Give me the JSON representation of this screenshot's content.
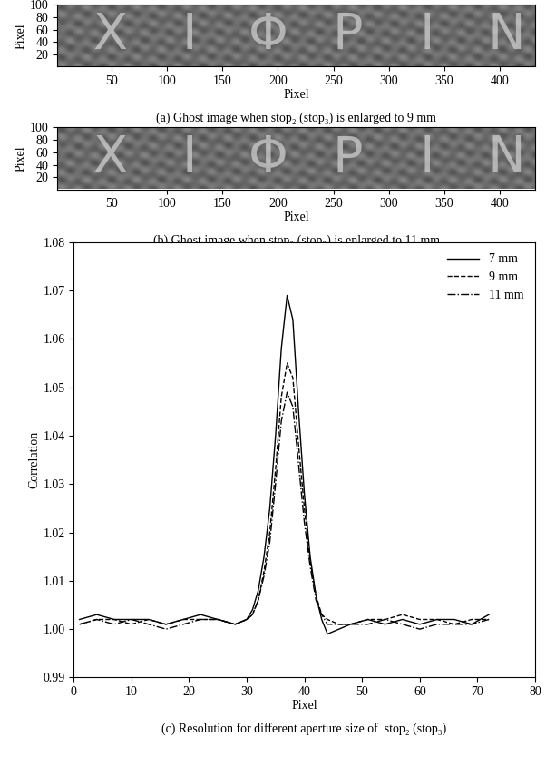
{
  "chart_data": [
    {
      "type": "image",
      "caption": "(a) Ghost image when stop₂ (stop₃) is enlarged to 9 mm",
      "image_text": [
        "X",
        "I",
        "Φ",
        "P",
        "I",
        "N"
      ],
      "x_label": "Pixel",
      "y_label": "Pixel",
      "xlim": [
        1,
        432
      ],
      "ylim": [
        1,
        100
      ],
      "xticks": [
        50,
        100,
        150,
        200,
        250,
        300,
        350,
        400
      ],
      "yticks": [
        20,
        40,
        60,
        80,
        100
      ]
    },
    {
      "type": "image",
      "caption": "(b) Ghost image when stop₂ (stop₃) is enlarged to 11 mm",
      "image_text": [
        "X",
        "I",
        "Φ",
        "P",
        "I",
        "N"
      ],
      "x_label": "Pixel",
      "y_label": "Pixel",
      "xlim": [
        1,
        432
      ],
      "ylim": [
        1,
        100
      ],
      "xticks": [
        50,
        100,
        150,
        200,
        250,
        300,
        350,
        400
      ],
      "yticks": [
        20,
        40,
        60,
        80,
        100
      ]
    },
    {
      "type": "line",
      "caption": "(c) Resolution for different aperture size of  stop₂ (stop₃)",
      "x_label": "Pixel",
      "y_label": "Correlation",
      "legend": "upper right",
      "xlim": [
        0,
        80
      ],
      "ylim": [
        0.99,
        1.08
      ],
      "xticks": [
        0,
        10,
        20,
        30,
        40,
        50,
        60,
        70,
        80
      ],
      "yticks": [
        0.99,
        {
          "value": 1.0,
          "label": "1.00"
        },
        1.01,
        1.02,
        1.03,
        1.04,
        1.05,
        1.06,
        1.07,
        1.08
      ],
      "x": [
        1,
        4,
        7,
        10,
        13,
        16,
        19,
        22,
        25,
        28,
        30,
        31,
        32,
        33,
        34,
        35,
        36,
        37,
        38,
        39,
        40,
        41,
        42,
        43,
        44,
        46,
        48,
        51,
        54,
        57,
        60,
        63,
        66,
        69,
        72
      ],
      "series": [
        {
          "name": "7 mm",
          "color": "#000000",
          "line_style": "solid",
          "values": [
            1.002,
            1.003,
            1.002,
            1.002,
            1.002,
            1.001,
            1.002,
            1.003,
            1.002,
            1.001,
            1.002,
            1.004,
            1.008,
            1.015,
            1.025,
            1.04,
            1.058,
            1.069,
            1.064,
            1.045,
            1.028,
            1.015,
            1.007,
            1.002,
            0.999,
            1.0,
            1.001,
            1.002,
            1.001,
            1.002,
            1.001,
            1.002,
            1.002,
            1.001,
            1.003
          ]
        },
        {
          "name": "9 mm",
          "color": "#000000",
          "line_style": "dashed",
          "values": [
            1.001,
            1.002,
            1.002,
            1.001,
            1.002,
            1.001,
            1.002,
            1.002,
            1.002,
            1.001,
            1.002,
            1.003,
            1.006,
            1.012,
            1.02,
            1.033,
            1.048,
            1.055,
            1.052,
            1.038,
            1.025,
            1.014,
            1.007,
            1.003,
            1.002,
            1.001,
            1.001,
            1.002,
            1.002,
            1.003,
            1.002,
            1.002,
            1.001,
            1.002,
            1.002
          ]
        },
        {
          "name": "11 mm",
          "color": "#000000",
          "line_style": "dashdot",
          "values": [
            1.001,
            1.002,
            1.001,
            1.002,
            1.001,
            1.0,
            1.001,
            1.002,
            1.002,
            1.001,
            1.002,
            1.003,
            1.006,
            1.011,
            1.018,
            1.03,
            1.043,
            1.049,
            1.046,
            1.034,
            1.022,
            1.013,
            1.006,
            1.003,
            1.001,
            1.001,
            1.001,
            1.001,
            1.002,
            1.001,
            1.0,
            1.001,
            1.001,
            1.001,
            1.002
          ]
        }
      ]
    }
  ]
}
